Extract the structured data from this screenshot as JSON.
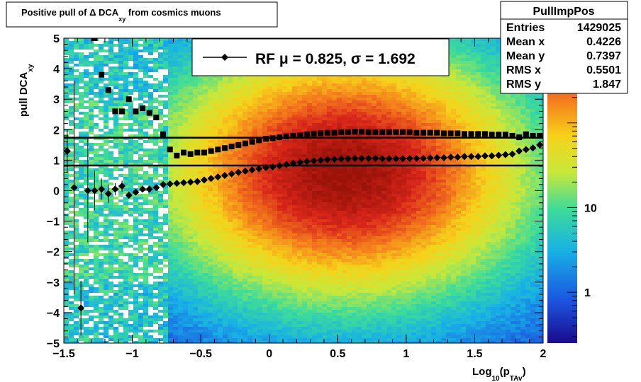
{
  "chart_data": {
    "type": "heatmap",
    "title": "Positive pull of Δ DCA_xy from cosmics muons",
    "title_parts": [
      "Positive pull of ",
      "Δ",
      " DCA",
      "xy",
      " from cosmics muons"
    ],
    "xlabel": "Log10(pTAv)",
    "xlabel_parts": [
      "Log",
      "10",
      "(p",
      "TAv",
      ")"
    ],
    "ylabel": "pull DCA_xy",
    "ylabel_parts": [
      "pull DCA",
      "xy"
    ],
    "xlim": [
      -1.5,
      2
    ],
    "ylim": [
      -5,
      5
    ],
    "x_ticks": [
      -1.5,
      -1,
      -0.5,
      0,
      0.5,
      1,
      1.5,
      2
    ],
    "x_tick_labels": [
      "−1.5",
      "−1",
      "−0.5",
      "0",
      "0.5",
      "1",
      "1.5",
      "2"
    ],
    "y_ticks": [
      -5,
      -4,
      -3,
      -2,
      -1,
      0,
      1,
      2,
      3,
      4,
      5
    ],
    "y_tick_labels": [
      "−5",
      "−4",
      "−3",
      "−2",
      "−1",
      "0",
      "1",
      "2",
      "3",
      "4",
      "5"
    ],
    "z_scale": "log",
    "z_tick_labels": [
      {
        "value": 1,
        "label": "1"
      },
      {
        "value": 10,
        "label": "10"
      }
    ],
    "palette": [
      "#1a0a8c",
      "#1b55e0",
      "#17b0e6",
      "#3ddc99",
      "#c8e83a",
      "#f6d21a",
      "#f47a1c",
      "#d8261a",
      "#9a1208"
    ],
    "density_peak": {
      "x": 0.55,
      "y": 0.6,
      "sigma_x": 0.75,
      "sigma_y": 2.3
    },
    "series": [
      {
        "name": "RF",
        "marker": "diamond",
        "x": [
          -1.475,
          -1.425,
          -1.375,
          -1.325,
          -1.275,
          -1.225,
          -1.175,
          -1.125,
          -1.075,
          -1.025,
          -0.975,
          -0.925,
          -0.875,
          -0.825,
          -0.775,
          -0.725,
          -0.675,
          -0.625,
          -0.575,
          -0.525,
          -0.475,
          -0.425,
          -0.375,
          -0.325,
          -0.275,
          -0.225,
          -0.175,
          -0.125,
          -0.075,
          -0.025,
          0.025,
          0.075,
          0.125,
          0.175,
          0.225,
          0.275,
          0.325,
          0.375,
          0.425,
          0.475,
          0.525,
          0.575,
          0.625,
          0.675,
          0.725,
          0.775,
          0.825,
          0.875,
          0.925,
          0.975,
          1.025,
          1.075,
          1.125,
          1.175,
          1.225,
          1.275,
          1.325,
          1.375,
          1.425,
          1.475,
          1.525,
          1.575,
          1.625,
          1.675,
          1.725,
          1.775,
          1.825,
          1.875,
          1.925,
          1.975
        ],
        "y": [
          1.3,
          0.1,
          -3.85,
          0.0,
          0.0,
          0.05,
          -0.1,
          0.05,
          0.15,
          -0.15,
          -0.05,
          0.05,
          0.05,
          0.1,
          0.2,
          0.22,
          0.24,
          0.26,
          0.28,
          0.3,
          0.35,
          0.4,
          0.45,
          0.5,
          0.55,
          0.6,
          0.64,
          0.68,
          0.72,
          0.75,
          0.78,
          0.82,
          0.86,
          0.9,
          0.93,
          0.96,
          0.98,
          1.0,
          1.02,
          1.03,
          1.04,
          1.05,
          1.06,
          1.06,
          1.06,
          1.06,
          1.05,
          1.05,
          1.05,
          1.05,
          1.06,
          1.06,
          1.06,
          1.07,
          1.08,
          1.08,
          1.1,
          1.1,
          1.12,
          1.12,
          1.12,
          1.14,
          1.14,
          1.16,
          1.18,
          1.2,
          1.3,
          1.35,
          1.4,
          1.5
        ],
        "yerr_low": [
          0,
          0.1,
          0,
          0,
          0,
          0,
          0,
          0,
          0,
          0,
          0,
          0,
          0,
          0,
          0,
          0,
          0,
          0,
          0,
          0,
          0,
          0,
          0,
          0,
          0,
          0,
          0,
          0,
          0,
          0,
          0,
          0,
          0,
          0,
          0,
          0,
          0,
          0,
          0,
          0,
          0,
          0,
          0,
          0,
          0,
          0,
          0,
          0,
          0,
          0,
          0,
          0,
          0,
          0,
          0,
          0,
          0,
          0,
          0,
          0,
          0,
          0,
          0,
          0,
          0,
          0,
          0,
          0,
          0,
          0
        ],
        "yerr": [
          0.7,
          3.5,
          0.9,
          1.7,
          0.65,
          0.35,
          0.3,
          0.2,
          0.18,
          0.12,
          0.1,
          0.08,
          0.06,
          0.06,
          0.05,
          0.04,
          0.03,
          0.03,
          0.02,
          0.02,
          0.02,
          0.02,
          0.02,
          0.02,
          0.02,
          0.02,
          0.02,
          0.02,
          0.02,
          0.02,
          0.02,
          0.02,
          0.02,
          0.02,
          0.02,
          0.02,
          0.02,
          0.02,
          0.02,
          0.02,
          0.02,
          0.02,
          0.02,
          0.02,
          0.02,
          0.02,
          0.02,
          0.02,
          0.02,
          0.02,
          0.02,
          0.02,
          0.02,
          0.02,
          0.02,
          0.02,
          0.02,
          0.02,
          0.02,
          0.02,
          0.02,
          0.03,
          0.03,
          0.03,
          0.03,
          0.03,
          0.04,
          0.04,
          0.05,
          0.05
        ]
      },
      {
        "name": "RMS",
        "marker": "square",
        "x": [
          -1.275,
          -1.225,
          -1.175,
          -1.125,
          -1.075,
          -1.025,
          -0.975,
          -0.925,
          -0.875,
          -0.825,
          -0.775,
          -0.725,
          -0.675,
          -0.625,
          -0.575,
          -0.525,
          -0.475,
          -0.425,
          -0.375,
          -0.325,
          -0.275,
          -0.225,
          -0.175,
          -0.125,
          -0.075,
          -0.025,
          0.025,
          0.075,
          0.125,
          0.175,
          0.225,
          0.275,
          0.325,
          0.375,
          0.425,
          0.475,
          0.525,
          0.575,
          0.625,
          0.675,
          0.725,
          0.775,
          0.825,
          0.875,
          0.925,
          0.975,
          1.025,
          1.075,
          1.125,
          1.175,
          1.225,
          1.275,
          1.325,
          1.375,
          1.425,
          1.475,
          1.525,
          1.575,
          1.625,
          1.675,
          1.725,
          1.775,
          1.825,
          1.875,
          1.925,
          1.975
        ],
        "y": [
          5.0,
          3.8,
          3.3,
          2.6,
          2.6,
          3.0,
          2.6,
          2.7,
          2.55,
          2.4,
          1.85,
          1.35,
          1.15,
          1.25,
          1.2,
          1.25,
          1.25,
          1.3,
          1.35,
          1.4,
          1.45,
          1.5,
          1.55,
          1.6,
          1.65,
          1.7,
          1.72,
          1.75,
          1.78,
          1.8,
          1.82,
          1.85,
          1.87,
          1.88,
          1.9,
          1.9,
          1.92,
          1.92,
          1.93,
          1.93,
          1.92,
          1.92,
          1.92,
          1.92,
          1.92,
          1.92,
          1.92,
          1.9,
          1.9,
          1.9,
          1.9,
          1.88,
          1.88,
          1.88,
          1.86,
          1.86,
          1.86,
          1.86,
          1.84,
          1.84,
          1.84,
          1.8,
          1.75,
          1.85,
          1.8,
          1.8
        ]
      }
    ],
    "fit_lines": [
      {
        "name": "mu",
        "y": 0.825
      },
      {
        "name": "sigma_band",
        "y": 1.738
      }
    ],
    "legend": {
      "text": "RF μ =  0.825, σ =   1.692",
      "position": "top-center",
      "marker": "diamond"
    },
    "stats_box": {
      "title": "PullImpPos",
      "position": "top-right",
      "rows": [
        {
          "label": "Entries",
          "value": "1429025"
        },
        {
          "label": "Mean x",
          "value": "0.4226"
        },
        {
          "label": "Mean y",
          "value": "0.7397"
        },
        {
          "label": "RMS x",
          "value": "0.5501"
        },
        {
          "label": "RMS y",
          "value": "1.847"
        }
      ]
    }
  }
}
